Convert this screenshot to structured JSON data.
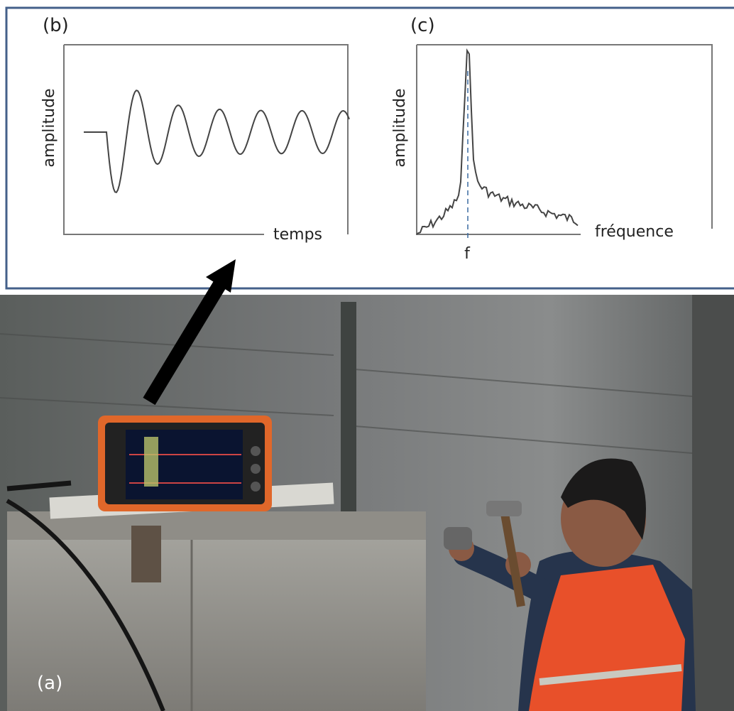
{
  "panels": {
    "b": {
      "label": "(b)",
      "y_label": "amplitude",
      "x_label": "temps"
    },
    "c": {
      "label": "(c)",
      "y_label": "amplitude",
      "x_label": "fréquence",
      "peak_label": "f"
    }
  },
  "photo": {
    "label": "(a)"
  }
}
